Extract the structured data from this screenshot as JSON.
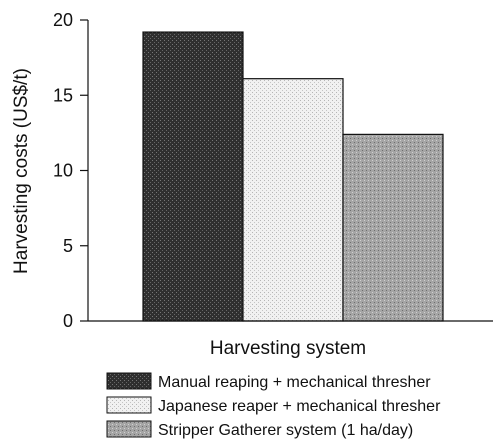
{
  "chart_data": {
    "type": "bar",
    "categories": [
      "Manual reaping + mechanical thresher",
      "Japanese reaper + mechanical thresher",
      "Stripper Gatherer system (1 ha/day)"
    ],
    "values": [
      19.2,
      16.1,
      12.4
    ],
    "xlabel": "Harvesting system",
    "ylabel": "Harvesting costs (US$/t)",
    "ylim": [
      0,
      20
    ],
    "yticks": [
      "0",
      "5",
      "10",
      "15",
      "20"
    ],
    "grid": false,
    "legend_position": "bottom",
    "colors": [
      "#2b2b2b",
      "#e6e6e6",
      "#9a9a9a"
    ]
  }
}
